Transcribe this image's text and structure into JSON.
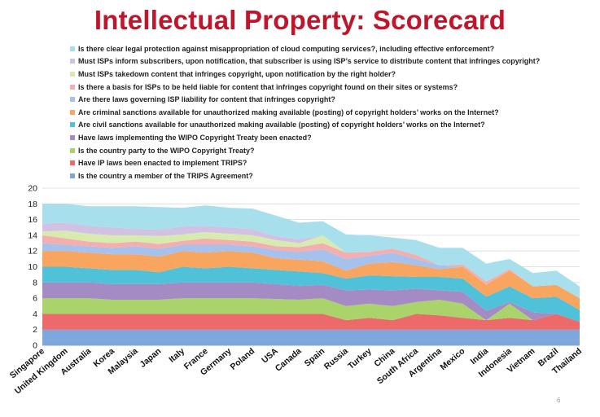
{
  "slide": {
    "title": "Intellectual Property: Scorecard",
    "page_number": "6"
  },
  "chart_data": {
    "type": "area",
    "stacked": true,
    "categories": [
      "Singapore",
      "United Kingdom",
      "Australia",
      "Korea",
      "Malaysia",
      "Japan",
      "Italy",
      "France",
      "Germany",
      "Poland",
      "USA",
      "Canada",
      "Spain",
      "Russia",
      "Turkey",
      "China",
      "South Africa",
      "Argentina",
      "Mexico",
      "India",
      "Indonesia",
      "Vietnam",
      "Brazil",
      "Thailand"
    ],
    "ylim": [
      0,
      20
    ],
    "yticks": [
      0,
      2,
      4,
      6,
      8,
      10,
      12,
      14,
      16,
      18,
      20
    ],
    "grid": true,
    "legend_position": "top",
    "series": [
      {
        "name": "Is the country a member of the TRIPS Agreement?",
        "color": "#7ea7dd",
        "values": [
          2,
          2,
          2,
          2,
          2,
          2,
          2,
          2,
          2,
          2,
          2,
          2,
          2,
          2,
          2,
          2,
          2,
          2,
          2,
          2,
          2,
          2,
          2,
          2
        ]
      },
      {
        "name": "Have IP laws been enacted to implement TRIPS?",
        "color": "#ec6a6a",
        "values": [
          2,
          2,
          2,
          2,
          2,
          2,
          2,
          2,
          2,
          2,
          2,
          2,
          2,
          1.2,
          1.5,
          1.2,
          2,
          1.8,
          1.5,
          1.2,
          1.5,
          1.2,
          2,
          1
        ]
      },
      {
        "name": "Is the country party to the WIPO Copyright Treaty?",
        "color": "#aad36c",
        "values": [
          2,
          2,
          2,
          1.8,
          1.8,
          1.8,
          2,
          2,
          2,
          2,
          1.9,
          1.8,
          2,
          1.8,
          1.8,
          1.8,
          1.5,
          2,
          1.8,
          0,
          1.8,
          0,
          0,
          0
        ]
      },
      {
        "name": "Have laws implementing the WIPO Copyright Treaty been enacted?",
        "color": "#a58bc4",
        "values": [
          2,
          2,
          2,
          2,
          2,
          2,
          2,
          2,
          2,
          2,
          1.9,
          1.8,
          1.7,
          2,
          1.8,
          2,
          1.7,
          1.2,
          1.5,
          1.2,
          0.2,
          1,
          0,
          0
        ]
      },
      {
        "name": "Are civil sanctions available for unauthorized making available (posting) of copyright holders’ works on the Internet?",
        "color": "#4fc2d9",
        "values": [
          2,
          2,
          1.8,
          1.8,
          1.8,
          1.5,
          2,
          1.8,
          2,
          1.8,
          1.8,
          1.8,
          1.5,
          1.5,
          1.8,
          1.8,
          1.5,
          1.7,
          1.7,
          1.8,
          2,
          1.8,
          2.2,
          1.5
        ]
      },
      {
        "name": "Are criminal sanctions available for unauthorized making available (posting) of copyright holders’ works on the Internet?",
        "color": "#f8a55f",
        "values": [
          2,
          2,
          2,
          2,
          2,
          2,
          2,
          2,
          2,
          2,
          1.5,
          1.5,
          1.5,
          1,
          1.5,
          1.8,
          1.5,
          1,
          1.5,
          1.5,
          2,
          1.5,
          1.5,
          1.5
        ]
      },
      {
        "name": "Are there laws governing ISP liability for content that infringes copyright?",
        "color": "#a6c2ec",
        "values": [
          1,
          0.8,
          0.8,
          0.8,
          1,
          1,
          0.8,
          1,
          0.8,
          0.8,
          1,
          1,
          1.5,
          1.5,
          1,
          1.2,
          0.8,
          0.5,
          0,
          0,
          0,
          0,
          0,
          0
        ]
      },
      {
        "name": "Is there a basis for ISPs to be held liable for content that infringes copyright found on their sites or systems?",
        "color": "#f4aeb0",
        "values": [
          1,
          0.8,
          0.6,
          0.6,
          0.6,
          0.6,
          0.5,
          0.8,
          0.6,
          0.6,
          0.5,
          0.6,
          0.8,
          0.8,
          0.5,
          0.5,
          0.5,
          0,
          0.3,
          0.4,
          0.2,
          0,
          0,
          0
        ]
      },
      {
        "name": "Must ISPs takedown content that infringes copyright, upon notification by the right holder?",
        "color": "#d8ebae",
        "values": [
          0.5,
          1,
          1,
          1,
          0.8,
          1,
          0.8,
          0.8,
          0.8,
          0.8,
          0.8,
          0.5,
          1,
          0,
          0,
          0,
          0,
          0,
          0,
          0,
          0,
          0,
          0,
          0
        ]
      },
      {
        "name": "Must ISPs inform subscribers, upon notification, that subscriber is using ISP’s service to distribute content that infringes copyright?",
        "color": "#d1c2e3",
        "values": [
          1,
          1,
          1,
          1,
          0.8,
          0.8,
          1,
          0.8,
          0.8,
          0.8,
          0.5,
          0.5,
          0,
          0,
          0,
          0,
          0,
          0,
          0,
          0,
          0,
          0,
          0,
          0
        ]
      },
      {
        "name": "Is there clear legal protection against misappropriation of cloud computing services?, including effective enforcement?",
        "color": "#a7e0ec",
        "values": [
          2.5,
          2.4,
          2.5,
          2.7,
          2.9,
          2.9,
          2.4,
          2.6,
          2.5,
          2.6,
          2.6,
          2.1,
          1.8,
          2.3,
          2.1,
          1.4,
          1.9,
          2.2,
          2.1,
          2.3,
          1.3,
          1.7,
          1.8,
          1.5
        ]
      }
    ]
  }
}
